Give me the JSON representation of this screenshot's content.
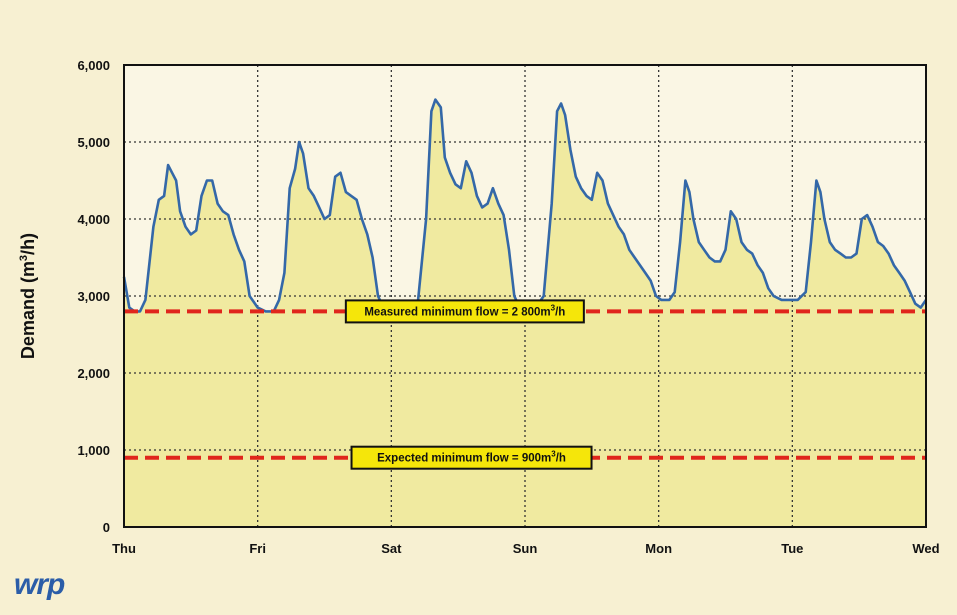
{
  "chart_data": {
    "type": "area",
    "ylabel": "Demand (m3/h)",
    "ylabel_parts": {
      "main": "Demand (m",
      "sup": "3",
      "tail": "/h)"
    },
    "x_ticks": [
      "Thu",
      "Fri",
      "Sat",
      "Sun",
      "Mon",
      "Tue",
      "Wed"
    ],
    "y_ticks": [
      "0",
      "1,000",
      "2,000",
      "3,000",
      "4,000",
      "5,000",
      "6,000"
    ],
    "ylim": [
      0,
      6000
    ],
    "xlim": [
      0,
      6
    ],
    "grid": true,
    "series": [
      {
        "color": "#3468a8",
        "fill": "#f0eaa0",
        "points": [
          [
            0.0,
            3250
          ],
          [
            0.04,
            2850
          ],
          [
            0.08,
            2800
          ],
          [
            0.12,
            2800
          ],
          [
            0.16,
            2950
          ],
          [
            0.22,
            3900
          ],
          [
            0.26,
            4250
          ],
          [
            0.3,
            4300
          ],
          [
            0.33,
            4700
          ],
          [
            0.36,
            4600
          ],
          [
            0.39,
            4500
          ],
          [
            0.42,
            4100
          ],
          [
            0.46,
            3900
          ],
          [
            0.5,
            3800
          ],
          [
            0.54,
            3850
          ],
          [
            0.58,
            4300
          ],
          [
            0.62,
            4500
          ],
          [
            0.66,
            4500
          ],
          [
            0.7,
            4200
          ],
          [
            0.74,
            4100
          ],
          [
            0.78,
            4050
          ],
          [
            0.82,
            3800
          ],
          [
            0.86,
            3600
          ],
          [
            0.9,
            3450
          ],
          [
            0.94,
            3000
          ],
          [
            1.0,
            2850
          ],
          [
            1.06,
            2800
          ],
          [
            1.12,
            2800
          ],
          [
            1.16,
            2950
          ],
          [
            1.2,
            3300
          ],
          [
            1.24,
            4400
          ],
          [
            1.28,
            4650
          ],
          [
            1.31,
            5000
          ],
          [
            1.34,
            4850
          ],
          [
            1.38,
            4400
          ],
          [
            1.42,
            4300
          ],
          [
            1.46,
            4150
          ],
          [
            1.5,
            4000
          ],
          [
            1.54,
            4050
          ],
          [
            1.58,
            4550
          ],
          [
            1.62,
            4600
          ],
          [
            1.66,
            4350
          ],
          [
            1.7,
            4300
          ],
          [
            1.74,
            4250
          ],
          [
            1.78,
            4000
          ],
          [
            1.82,
            3800
          ],
          [
            1.86,
            3500
          ],
          [
            1.9,
            3000
          ],
          [
            1.94,
            2850
          ],
          [
            1.98,
            2800
          ],
          [
            2.06,
            2800
          ],
          [
            2.14,
            2800
          ],
          [
            2.2,
            2950
          ],
          [
            2.26,
            4000
          ],
          [
            2.3,
            5400
          ],
          [
            2.33,
            5550
          ],
          [
            2.37,
            5450
          ],
          [
            2.4,
            4800
          ],
          [
            2.44,
            4600
          ],
          [
            2.48,
            4450
          ],
          [
            2.52,
            4400
          ],
          [
            2.56,
            4750
          ],
          [
            2.6,
            4600
          ],
          [
            2.64,
            4300
          ],
          [
            2.68,
            4150
          ],
          [
            2.72,
            4200
          ],
          [
            2.76,
            4400
          ],
          [
            2.8,
            4200
          ],
          [
            2.84,
            4050
          ],
          [
            2.88,
            3600
          ],
          [
            2.92,
            3000
          ],
          [
            2.96,
            2850
          ],
          [
            3.02,
            2850
          ],
          [
            3.08,
            2850
          ],
          [
            3.14,
            3000
          ],
          [
            3.2,
            4200
          ],
          [
            3.24,
            5400
          ],
          [
            3.27,
            5500
          ],
          [
            3.3,
            5350
          ],
          [
            3.34,
            4900
          ],
          [
            3.38,
            4550
          ],
          [
            3.42,
            4400
          ],
          [
            3.46,
            4300
          ],
          [
            3.5,
            4250
          ],
          [
            3.54,
            4600
          ],
          [
            3.58,
            4500
          ],
          [
            3.62,
            4200
          ],
          [
            3.66,
            4050
          ],
          [
            3.7,
            3900
          ],
          [
            3.74,
            3800
          ],
          [
            3.78,
            3600
          ],
          [
            3.82,
            3500
          ],
          [
            3.86,
            3400
          ],
          [
            3.9,
            3300
          ],
          [
            3.94,
            3200
          ],
          [
            3.98,
            3000
          ],
          [
            4.02,
            2950
          ],
          [
            4.08,
            2950
          ],
          [
            4.12,
            3050
          ],
          [
            4.16,
            3700
          ],
          [
            4.2,
            4500
          ],
          [
            4.23,
            4350
          ],
          [
            4.26,
            4000
          ],
          [
            4.3,
            3700
          ],
          [
            4.34,
            3600
          ],
          [
            4.38,
            3500
          ],
          [
            4.42,
            3450
          ],
          [
            4.46,
            3450
          ],
          [
            4.5,
            3600
          ],
          [
            4.54,
            4100
          ],
          [
            4.58,
            4000
          ],
          [
            4.62,
            3700
          ],
          [
            4.66,
            3600
          ],
          [
            4.7,
            3550
          ],
          [
            4.74,
            3400
          ],
          [
            4.78,
            3300
          ],
          [
            4.82,
            3100
          ],
          [
            4.86,
            3000
          ],
          [
            4.92,
            2950
          ],
          [
            4.98,
            2950
          ],
          [
            5.04,
            2950
          ],
          [
            5.1,
            3050
          ],
          [
            5.14,
            3700
          ],
          [
            5.18,
            4500
          ],
          [
            5.21,
            4350
          ],
          [
            5.24,
            4000
          ],
          [
            5.28,
            3700
          ],
          [
            5.32,
            3600
          ],
          [
            5.36,
            3550
          ],
          [
            5.4,
            3500
          ],
          [
            5.44,
            3500
          ],
          [
            5.48,
            3550
          ],
          [
            5.52,
            4000
          ],
          [
            5.56,
            4050
          ],
          [
            5.6,
            3900
          ],
          [
            5.64,
            3700
          ],
          [
            5.68,
            3650
          ],
          [
            5.72,
            3550
          ],
          [
            5.76,
            3400
          ],
          [
            5.8,
            3300
          ],
          [
            5.84,
            3200
          ],
          [
            5.88,
            3050
          ],
          [
            5.92,
            2900
          ],
          [
            5.96,
            2850
          ],
          [
            6.0,
            2950
          ]
        ]
      }
    ],
    "reference_lines": [
      {
        "value": 2800,
        "label": "Measured minimum flow = 2 800m3/h",
        "label_main": "Measured minimum flow = 2 800m",
        "label_sup": "3",
        "label_tail": "/h",
        "label_at": 2.55,
        "color": "#e0261c"
      },
      {
        "value": 900,
        "label": "Expected minimum flow = 900m3/h",
        "label_main": "Expected minimum flow = 900m",
        "label_sup": "3",
        "label_tail": "/h",
        "label_at": 2.6,
        "color": "#e0261c"
      }
    ],
    "colors": {
      "background": "#f7f0d2",
      "plot_fill": "#f0eaa0",
      "line": "#3468a8",
      "reference": "#e0261c",
      "label_box": "#f5e60a"
    }
  },
  "logo": {
    "text": "wrp"
  }
}
